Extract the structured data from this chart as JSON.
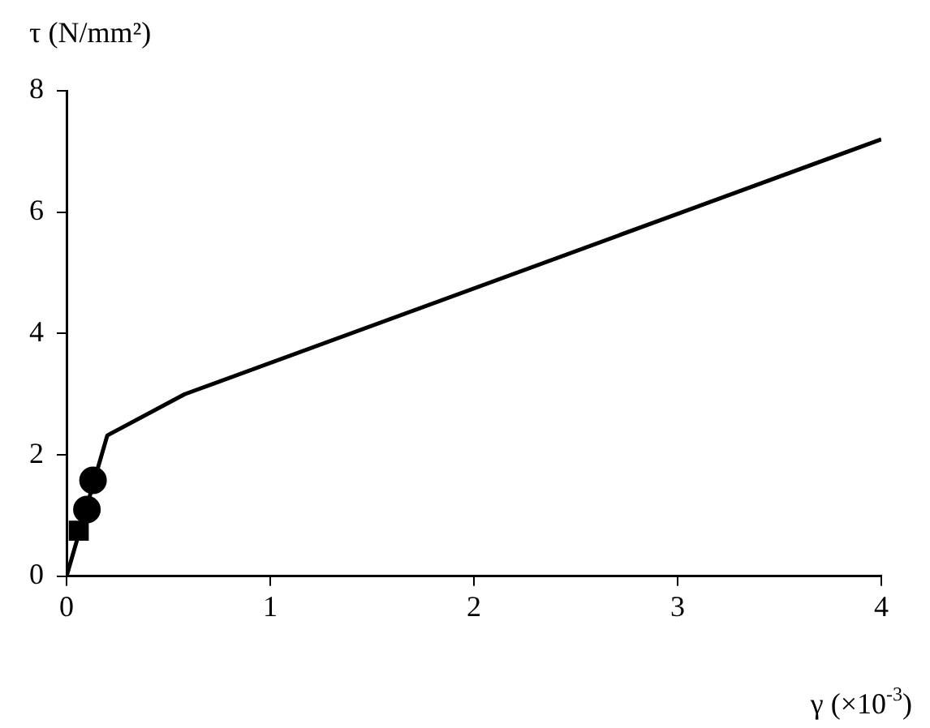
{
  "chart_data": {
    "type": "line",
    "xlabel": "γ (×10$^{-3}$)",
    "ylabel": "τ (N/mm²)",
    "xlim": [
      0,
      4
    ],
    "xticks": [
      0,
      1,
      2,
      3,
      4
    ],
    "ylim": [
      0,
      8
    ],
    "yticks": [
      0,
      2,
      4,
      6,
      8
    ],
    "grid": false,
    "legend": false,
    "series": [
      {
        "color": "#000000",
        "marker": "none",
        "x": [
          0,
          0.2,
          0.58,
          4
        ],
        "values": [
          0,
          2.32,
          3.0,
          7.2
        ]
      },
      {
        "type": "scatter",
        "color": "#000000",
        "marker": "square",
        "x": [
          0.06
        ],
        "values": [
          0.75
        ]
      },
      {
        "type": "scatter",
        "color": "#000000",
        "marker": "circle",
        "x": [
          0.1
        ],
        "values": [
          1.1
        ]
      },
      {
        "type": "scatter",
        "color": "#000000",
        "marker": "circle",
        "x": [
          0.13
        ],
        "values": [
          1.58
        ]
      }
    ]
  }
}
